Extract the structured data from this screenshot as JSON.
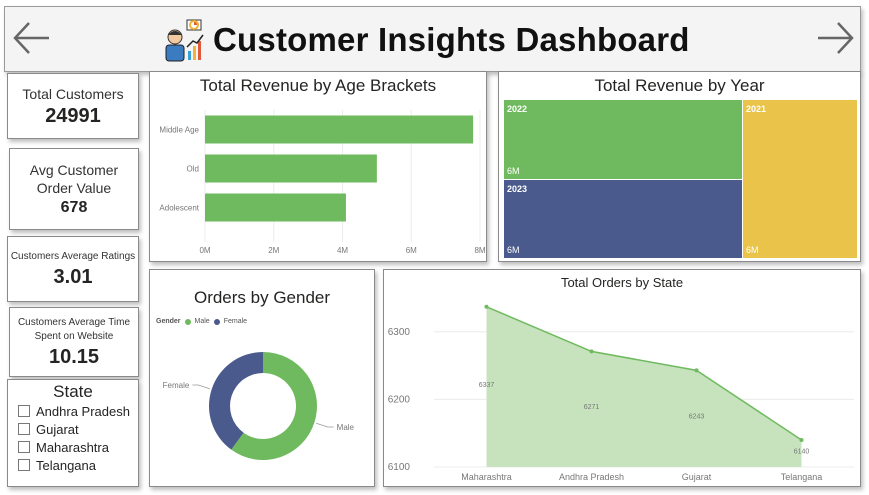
{
  "header": {
    "title": "Customer Insights Dashboard",
    "back_icon": "arrow-left-icon",
    "forward_icon": "arrow-right-icon",
    "logo_icon": "analyst-chart-icon"
  },
  "kpis": {
    "total_customers": {
      "label": "Total Customers",
      "value": "24991"
    },
    "avg_order_value": {
      "label": "Avg Customer Order Value",
      "value": "678"
    },
    "avg_ratings": {
      "label": "Customers Average Ratings",
      "value": "3.01"
    },
    "avg_time": {
      "label": "Customers Average Time Spent on Website",
      "value": "10.15"
    }
  },
  "slicer": {
    "title": "State",
    "items": [
      "Andhra Pradesh",
      "Gujarat",
      "Maharashtra",
      "Telangana"
    ]
  },
  "colors": {
    "green": "#6fba5e",
    "navy": "#4a5a8c",
    "yellow": "#eac44a",
    "area_fill": "#c7e3bd",
    "area_line": "#6fba5e"
  },
  "chart_data": [
    {
      "id": "revenue_by_age",
      "type": "bar",
      "orientation": "horizontal",
      "title": "Total Revenue by Age Brackets",
      "categories": [
        "Middle Age",
        "Old",
        "Adolescent"
      ],
      "values": [
        7.8,
        5.0,
        4.1
      ],
      "unit": "M",
      "xlim": [
        0,
        8
      ],
      "xticks": [
        "0M",
        "2M",
        "4M",
        "6M",
        "8M"
      ],
      "grid": true
    },
    {
      "id": "revenue_by_year",
      "type": "treemap",
      "title": "Total Revenue by Year",
      "items": [
        {
          "label": "2022",
          "value_label": "6M"
        },
        {
          "label": "2023",
          "value_label": "6M"
        },
        {
          "label": "2021",
          "value_label": "6M"
        }
      ]
    },
    {
      "id": "orders_by_gender",
      "type": "pie",
      "title": "Orders by Gender",
      "legend_title": "Gender",
      "legend_position": "top-left",
      "categories": [
        "Male",
        "Female"
      ],
      "values": [
        60,
        40
      ]
    },
    {
      "id": "orders_by_state",
      "type": "area",
      "title": "Total Orders by State",
      "categories": [
        "Maharashtra",
        "Andhra Pradesh",
        "Gujarat",
        "Telangana"
      ],
      "values": [
        6337,
        6271,
        6243,
        6140
      ],
      "ylim": [
        6100,
        6350
      ],
      "yticks": [
        "6100",
        "6200",
        "6300"
      ],
      "grid": true
    }
  ]
}
